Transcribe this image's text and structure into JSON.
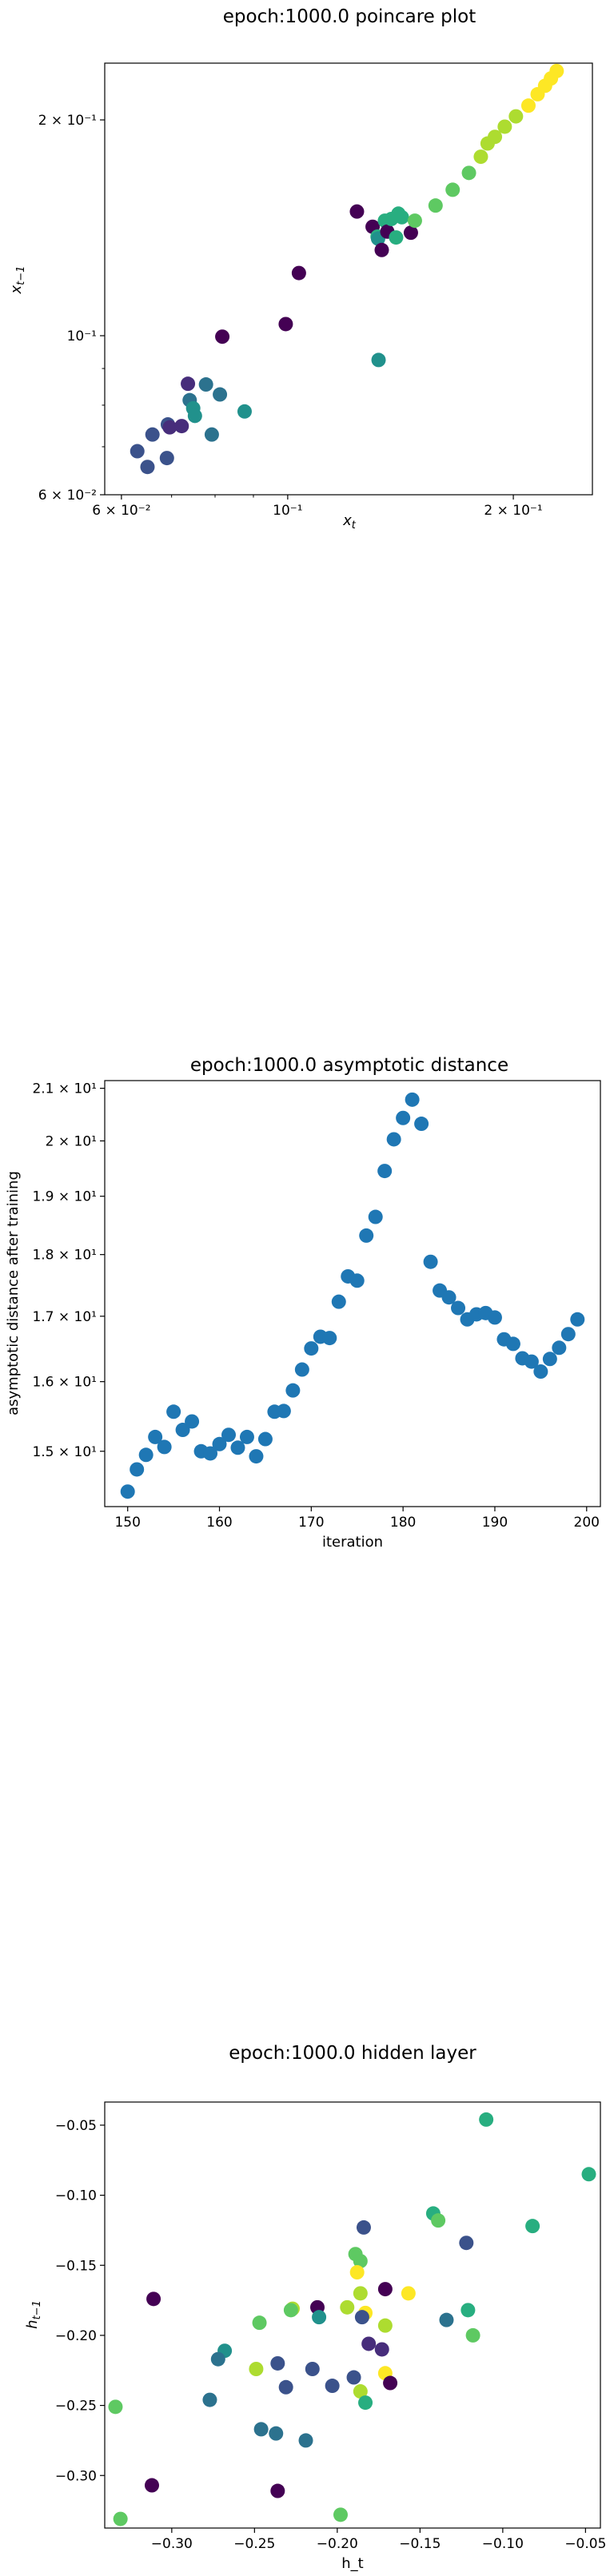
{
  "palette": [
    "#440154",
    "#472d7b",
    "#3b528b",
    "#2c728e",
    "#21918c",
    "#28ae80",
    "#5ec962",
    "#addc30",
    "#fde725"
  ],
  "chart_data": [
    {
      "type": "scatter",
      "title": "epoch:1000.0 poincare plot",
      "xlabel": "x_t",
      "ylabel": "x_{t-1}",
      "xscale": "log",
      "yscale": "log",
      "xlim": [
        0.057,
        0.255
      ],
      "ylim": [
        0.06,
        0.24
      ],
      "x_ticks": [
        {
          "v": 0.06,
          "label": "6 × 10⁻²"
        },
        {
          "v": 0.1,
          "label": "10⁻¹"
        },
        {
          "v": 0.2,
          "label": "2 × 10⁻¹"
        }
      ],
      "y_ticks": [
        {
          "v": 0.06,
          "label": "6 × 10⁻²"
        },
        {
          "v": 0.1,
          "label": "10⁻¹"
        },
        {
          "v": 0.2,
          "label": "2 × 10⁻¹"
        }
      ],
      "color_note": "points colored by time index (viridis)",
      "points": [
        {
          "x": 0.063,
          "y": 0.069,
          "c": 2
        },
        {
          "x": 0.065,
          "y": 0.0656,
          "c": 2
        },
        {
          "x": 0.066,
          "y": 0.0728,
          "c": 2
        },
        {
          "x": 0.069,
          "y": 0.0675,
          "c": 2
        },
        {
          "x": 0.0692,
          "y": 0.0752,
          "c": 2
        },
        {
          "x": 0.0696,
          "y": 0.0745,
          "c": 1
        },
        {
          "x": 0.0722,
          "y": 0.0748,
          "c": 1
        },
        {
          "x": 0.0736,
          "y": 0.0857,
          "c": 1
        },
        {
          "x": 0.074,
          "y": 0.0813,
          "c": 3
        },
        {
          "x": 0.0748,
          "y": 0.0792,
          "c": 4
        },
        {
          "x": 0.0752,
          "y": 0.0773,
          "c": 4
        },
        {
          "x": 0.0778,
          "y": 0.0855,
          "c": 3
        },
        {
          "x": 0.0792,
          "y": 0.0728,
          "c": 3
        },
        {
          "x": 0.0812,
          "y": 0.0828,
          "c": 3
        },
        {
          "x": 0.0818,
          "y": 0.0997,
          "c": 0
        },
        {
          "x": 0.0876,
          "y": 0.0784,
          "c": 4
        },
        {
          "x": 0.0994,
          "y": 0.1038,
          "c": 0
        },
        {
          "x": 0.1035,
          "y": 0.1223,
          "c": 0
        },
        {
          "x": 0.1237,
          "y": 0.149,
          "c": 0
        },
        {
          "x": 0.1298,
          "y": 0.1419,
          "c": 0
        },
        {
          "x": 0.1318,
          "y": 0.1375,
          "c": 5
        },
        {
          "x": 0.132,
          "y": 0.1366,
          "c": 4
        },
        {
          "x": 0.1322,
          "y": 0.0925,
          "c": 4
        },
        {
          "x": 0.1335,
          "y": 0.1317,
          "c": 0
        },
        {
          "x": 0.1348,
          "y": 0.1447,
          "c": 5
        },
        {
          "x": 0.1358,
          "y": 0.1397,
          "c": 0
        },
        {
          "x": 0.1375,
          "y": 0.1455,
          "c": 5
        },
        {
          "x": 0.1395,
          "y": 0.1371,
          "c": 5
        },
        {
          "x": 0.1405,
          "y": 0.148,
          "c": 5
        },
        {
          "x": 0.142,
          "y": 0.1463,
          "c": 5
        },
        {
          "x": 0.146,
          "y": 0.1392,
          "c": 0
        },
        {
          "x": 0.1478,
          "y": 0.1447,
          "c": 6
        },
        {
          "x": 0.1575,
          "y": 0.1519,
          "c": 6
        },
        {
          "x": 0.166,
          "y": 0.1598,
          "c": 6
        },
        {
          "x": 0.1745,
          "y": 0.1687,
          "c": 6
        },
        {
          "x": 0.181,
          "y": 0.1777,
          "c": 7
        },
        {
          "x": 0.1848,
          "y": 0.1854,
          "c": 7
        },
        {
          "x": 0.189,
          "y": 0.1894,
          "c": 7
        },
        {
          "x": 0.1948,
          "y": 0.1957,
          "c": 7
        },
        {
          "x": 0.2016,
          "y": 0.2023,
          "c": 7
        },
        {
          "x": 0.2095,
          "y": 0.2094,
          "c": 8
        },
        {
          "x": 0.2155,
          "y": 0.2172,
          "c": 8
        },
        {
          "x": 0.2205,
          "y": 0.2232,
          "c": 8
        },
        {
          "x": 0.2245,
          "y": 0.2285,
          "c": 8
        },
        {
          "x": 0.2285,
          "y": 0.234,
          "c": 8
        }
      ]
    },
    {
      "type": "scatter",
      "title": "epoch:1000.0 asymptotic distance",
      "xlabel": "iteration",
      "ylabel": "asymptotic distance after training",
      "yscale": "log",
      "xlim": [
        147.5,
        201.5
      ],
      "ylim": [
        14.25,
        21.15
      ],
      "x_ticks": [
        {
          "v": 150,
          "label": "150"
        },
        {
          "v": 160,
          "label": "160"
        },
        {
          "v": 170,
          "label": "170"
        },
        {
          "v": 180,
          "label": "180"
        },
        {
          "v": 190,
          "label": "190"
        },
        {
          "v": 200,
          "label": "200"
        }
      ],
      "y_ticks": [
        {
          "v": 15,
          "label": "1.5 × 10¹"
        },
        {
          "v": 16,
          "label": "1.6 × 10¹"
        },
        {
          "v": 17,
          "label": "1.7 × 10¹"
        },
        {
          "v": 18,
          "label": "1.8 × 10¹"
        },
        {
          "v": 19,
          "label": "1.9 × 10¹"
        },
        {
          "v": 20,
          "label": "2 × 10¹"
        },
        {
          "v": 21,
          "label": "2.1 × 10¹"
        }
      ],
      "color": "#1f77b4",
      "x": [
        150,
        151,
        152,
        153,
        154,
        155,
        156,
        157,
        158,
        159,
        160,
        161,
        162,
        163,
        164,
        165,
        166,
        167,
        168,
        169,
        170,
        171,
        172,
        173,
        174,
        175,
        176,
        177,
        178,
        179,
        180,
        181,
        182,
        183,
        184,
        185,
        186,
        187,
        188,
        189,
        190,
        191,
        192,
        193,
        194,
        195,
        196,
        197,
        198,
        199
      ],
      "y": [
        14.45,
        14.75,
        14.95,
        15.2,
        15.06,
        15.56,
        15.3,
        15.42,
        15.0,
        14.97,
        15.1,
        15.23,
        15.05,
        15.2,
        14.93,
        15.17,
        15.56,
        15.57,
        15.87,
        16.18,
        16.5,
        16.68,
        16.66,
        17.23,
        17.64,
        17.57,
        18.32,
        18.64,
        19.45,
        20.03,
        20.43,
        20.78,
        20.32,
        17.88,
        17.41,
        17.3,
        17.13,
        16.95,
        17.03,
        17.05,
        16.98,
        16.64,
        16.57,
        16.35,
        16.3,
        16.15,
        16.34,
        16.51,
        16.72,
        16.95
      ]
    },
    {
      "type": "scatter",
      "title": "epoch:1000.0 hidden layer",
      "xlabel": "h_t",
      "ylabel": "h_{t-1}",
      "xlim": [
        -0.3405,
        -0.041
      ],
      "ylim": [
        -0.3375,
        -0.0335
      ],
      "x_ticks": [
        {
          "v": -0.3,
          "label": "−0.30"
        },
        {
          "v": -0.25,
          "label": "−0.25"
        },
        {
          "v": -0.2,
          "label": "−0.20"
        },
        {
          "v": -0.15,
          "label": "−0.15"
        },
        {
          "v": -0.1,
          "label": "−0.10"
        },
        {
          "v": -0.05,
          "label": "−0.05"
        }
      ],
      "y_ticks": [
        {
          "v": -0.3,
          "label": "−0.30"
        },
        {
          "v": -0.25,
          "label": "−0.25"
        },
        {
          "v": -0.2,
          "label": "−0.20"
        },
        {
          "v": -0.15,
          "label": "−0.15"
        },
        {
          "v": -0.1,
          "label": "−0.10"
        },
        {
          "v": -0.05,
          "label": "−0.05"
        }
      ],
      "color_note": "points colored by time index (viridis)",
      "points": [
        {
          "x": -0.11,
          "y": -0.046,
          "c": 5
        },
        {
          "x": -0.048,
          "y": -0.085,
          "c": 5
        },
        {
          "x": -0.082,
          "y": -0.122,
          "c": 5
        },
        {
          "x": -0.142,
          "y": -0.113,
          "c": 5
        },
        {
          "x": -0.139,
          "y": -0.118,
          "c": 6
        },
        {
          "x": -0.122,
          "y": -0.134,
          "c": 2
        },
        {
          "x": -0.184,
          "y": -0.123,
          "c": 2
        },
        {
          "x": -0.189,
          "y": -0.142,
          "c": 6
        },
        {
          "x": -0.186,
          "y": -0.147,
          "c": 6
        },
        {
          "x": -0.188,
          "y": -0.155,
          "c": 8
        },
        {
          "x": -0.157,
          "y": -0.17,
          "c": 8
        },
        {
          "x": -0.171,
          "y": -0.167,
          "c": 0
        },
        {
          "x": -0.186,
          "y": -0.17,
          "c": 7
        },
        {
          "x": -0.311,
          "y": -0.174,
          "c": 0
        },
        {
          "x": -0.194,
          "y": -0.18,
          "c": 7
        },
        {
          "x": -0.227,
          "y": -0.181,
          "c": 7
        },
        {
          "x": -0.212,
          "y": -0.18,
          "c": 0
        },
        {
          "x": -0.228,
          "y": -0.182,
          "c": 6
        },
        {
          "x": -0.183,
          "y": -0.184,
          "c": 8
        },
        {
          "x": -0.121,
          "y": -0.182,
          "c": 5
        },
        {
          "x": -0.185,
          "y": -0.187,
          "c": 2
        },
        {
          "x": -0.211,
          "y": -0.187,
          "c": 4
        },
        {
          "x": -0.134,
          "y": -0.189,
          "c": 3
        },
        {
          "x": -0.247,
          "y": -0.191,
          "c": 6
        },
        {
          "x": -0.171,
          "y": -0.193,
          "c": 7
        },
        {
          "x": -0.118,
          "y": -0.2,
          "c": 6
        },
        {
          "x": -0.181,
          "y": -0.206,
          "c": 1
        },
        {
          "x": -0.173,
          "y": -0.21,
          "c": 1
        },
        {
          "x": -0.268,
          "y": -0.211,
          "c": 4
        },
        {
          "x": -0.272,
          "y": -0.217,
          "c": 3
        },
        {
          "x": -0.236,
          "y": -0.22,
          "c": 2
        },
        {
          "x": -0.249,
          "y": -0.224,
          "c": 7
        },
        {
          "x": -0.215,
          "y": -0.224,
          "c": 2
        },
        {
          "x": -0.171,
          "y": -0.227,
          "c": 8
        },
        {
          "x": -0.19,
          "y": -0.23,
          "c": 2
        },
        {
          "x": -0.231,
          "y": -0.237,
          "c": 2
        },
        {
          "x": -0.203,
          "y": -0.236,
          "c": 2
        },
        {
          "x": -0.168,
          "y": -0.234,
          "c": 0
        },
        {
          "x": -0.186,
          "y": -0.24,
          "c": 7
        },
        {
          "x": -0.277,
          "y": -0.246,
          "c": 3
        },
        {
          "x": -0.183,
          "y": -0.248,
          "c": 5
        },
        {
          "x": -0.334,
          "y": -0.251,
          "c": 6
        },
        {
          "x": -0.246,
          "y": -0.267,
          "c": 3
        },
        {
          "x": -0.237,
          "y": -0.27,
          "c": 3
        },
        {
          "x": -0.219,
          "y": -0.275,
          "c": 3
        },
        {
          "x": -0.312,
          "y": -0.307,
          "c": 0
        },
        {
          "x": -0.236,
          "y": -0.311,
          "c": 0
        },
        {
          "x": -0.198,
          "y": -0.328,
          "c": 6
        },
        {
          "x": -0.331,
          "y": -0.331,
          "c": 6
        }
      ]
    }
  ]
}
